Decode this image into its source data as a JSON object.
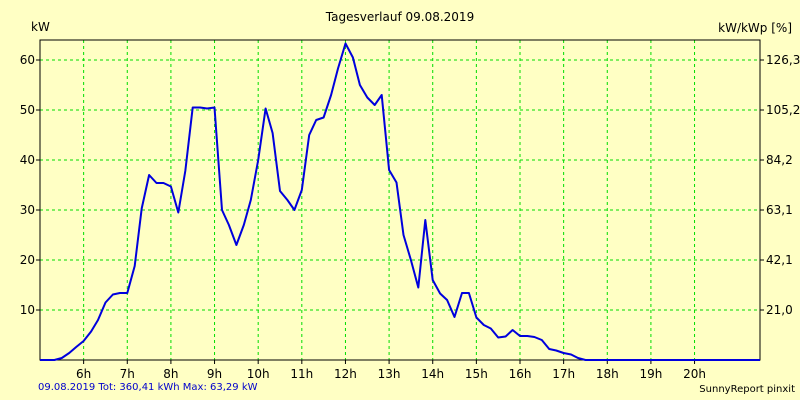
{
  "header": {
    "title": "Tagesverlauf 09.08.2019"
  },
  "footer": {
    "summary": "09.08.2019 Tot: 360,41 kWh Max: 63,29 kW",
    "brand": "SunnyReport pinxit"
  },
  "colors": {
    "background": "#ffffc4",
    "grid": "#00dd00",
    "line": "#0000dd",
    "axis": "#000000"
  },
  "chart_data": {
    "type": "line",
    "title": "Tagesverlauf 09.08.2019",
    "ylabel": "kW",
    "y2label": "kW/kWp [%]",
    "xlabel": "",
    "xlim": [
      5.0,
      21.5
    ],
    "ylim": [
      0,
      64
    ],
    "y2lim": [
      0,
      134.5
    ],
    "grid": true,
    "x_ticks": [
      6,
      7,
      8,
      9,
      10,
      11,
      12,
      13,
      14,
      15,
      16,
      17,
      18,
      19,
      20
    ],
    "x_tick_labels": [
      "6h",
      "7h",
      "8h",
      "9h",
      "10h",
      "11h",
      "12h",
      "13h",
      "14h",
      "15h",
      "16h",
      "17h",
      "18h",
      "19h",
      "20h"
    ],
    "y_ticks": [
      10,
      20,
      30,
      40,
      50,
      60
    ],
    "y2_ticks": [
      10,
      20,
      30,
      40,
      50,
      60
    ],
    "y2_tick_labels": [
      "21,0",
      "42,1",
      "63,1",
      "84,2",
      "105,2",
      "126,3"
    ],
    "series": [
      {
        "name": "kW",
        "x": [
          5.0,
          5.33,
          5.5,
          5.67,
          5.83,
          6.0,
          6.17,
          6.33,
          6.5,
          6.67,
          6.83,
          7.0,
          7.17,
          7.33,
          7.5,
          7.67,
          7.83,
          8.0,
          8.17,
          8.33,
          8.5,
          8.67,
          8.83,
          9.0,
          9.17,
          9.33,
          9.5,
          9.67,
          9.83,
          10.0,
          10.17,
          10.33,
          10.5,
          10.67,
          10.83,
          11.0,
          11.17,
          11.33,
          11.5,
          11.67,
          11.83,
          12.0,
          12.17,
          12.33,
          12.5,
          12.67,
          12.83,
          13.0,
          13.17,
          13.33,
          13.5,
          13.67,
          13.83,
          14.0,
          14.17,
          14.33,
          14.5,
          14.67,
          14.83,
          15.0,
          15.17,
          15.33,
          15.5,
          15.67,
          15.83,
          16.0,
          16.17,
          16.33,
          16.5,
          16.67,
          16.83,
          17.0,
          17.17,
          17.33,
          17.5,
          17.67,
          17.83,
          18.0,
          18.17,
          18.33,
          18.5,
          18.67,
          18.83,
          19.0,
          19.17,
          19.33,
          19.5,
          19.67,
          19.83,
          20.0,
          20.17,
          20.33,
          20.5,
          20.67,
          20.83,
          21.0,
          21.17,
          21.33,
          21.5
        ],
        "values": [
          0,
          0,
          0.4,
          1.4,
          2.6,
          3.8,
          5.7,
          8,
          11.5,
          13.1,
          13.4,
          13.4,
          18.8,
          30.3,
          37,
          35.4,
          35.4,
          34.7,
          29.5,
          37.8,
          50.5,
          50.5,
          50.3,
          50.5,
          30,
          27,
          23,
          27,
          32,
          40,
          50.3,
          45.4,
          33.8,
          32,
          30,
          34,
          45,
          48,
          48.5,
          53,
          58.3,
          63.3,
          60.5,
          55,
          52.5,
          51,
          53,
          38,
          35.5,
          25,
          20,
          14.5,
          28,
          16,
          13.3,
          12,
          8.6,
          13.4,
          13.4,
          8.5,
          7,
          6.3,
          4.5,
          4.7,
          6,
          4.8,
          4.8,
          4.6,
          4,
          2.2,
          1.9,
          1.4,
          1.1,
          0.4,
          0,
          0,
          0,
          0,
          0,
          0,
          0,
          0,
          0,
          0,
          0,
          0,
          0,
          0,
          0,
          0,
          0,
          0,
          0,
          0,
          0,
          0,
          0,
          0,
          0
        ]
      }
    ]
  }
}
